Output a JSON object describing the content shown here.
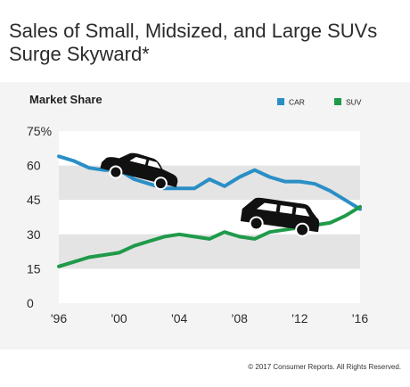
{
  "title": "Sales of Small, Midsized, and Large SUVs Surge Skyward*",
  "footer": "© 2017 Consumer Reports. All Rights Reserved.",
  "icons": [
    "car-icon",
    "suv-icon"
  ],
  "chart_data": {
    "type": "line",
    "title": "Market Share",
    "xlabel": "",
    "ylabel": "",
    "ylim": [
      0,
      75
    ],
    "xlim": [
      1996,
      2016
    ],
    "grid": "alternating horizontal bands",
    "legend": "top-right",
    "y_ticks": [
      {
        "value": 75,
        "label": "75%"
      },
      {
        "value": 60,
        "label": "60"
      },
      {
        "value": 45,
        "label": "45"
      },
      {
        "value": 30,
        "label": "30"
      },
      {
        "value": 15,
        "label": "15"
      },
      {
        "value": 0,
        "label": "0"
      }
    ],
    "x_ticks": [
      {
        "value": 1996,
        "label": "'96"
      },
      {
        "value": 2000,
        "label": "'00"
      },
      {
        "value": 2004,
        "label": "'04"
      },
      {
        "value": 2008,
        "label": "'08"
      },
      {
        "value": 2012,
        "label": "'12"
      },
      {
        "value": 2016,
        "label": "'16"
      }
    ],
    "series": [
      {
        "name": "CAR",
        "color": "#2a8fc6",
        "x": [
          1996,
          1997,
          1998,
          1999,
          2000,
          2001,
          2002,
          2003,
          2004,
          2005,
          2006,
          2007,
          2008,
          2009,
          2010,
          2011,
          2012,
          2013,
          2014,
          2015,
          2016
        ],
        "values": [
          64,
          62,
          59,
          58,
          58,
          54,
          52,
          50,
          50,
          50,
          54,
          51,
          55,
          58,
          55,
          53,
          53,
          52,
          49,
          45,
          41
        ]
      },
      {
        "name": "SUV",
        "color": "#1f9a4a",
        "x": [
          1996,
          1997,
          1998,
          1999,
          2000,
          2001,
          2002,
          2003,
          2004,
          2005,
          2006,
          2007,
          2008,
          2009,
          2010,
          2011,
          2012,
          2013,
          2014,
          2015,
          2016
        ],
        "values": [
          16,
          18,
          20,
          21,
          22,
          25,
          27,
          29,
          30,
          29,
          28,
          31,
          29,
          28,
          31,
          32,
          33,
          34,
          35,
          38,
          42
        ]
      }
    ]
  }
}
